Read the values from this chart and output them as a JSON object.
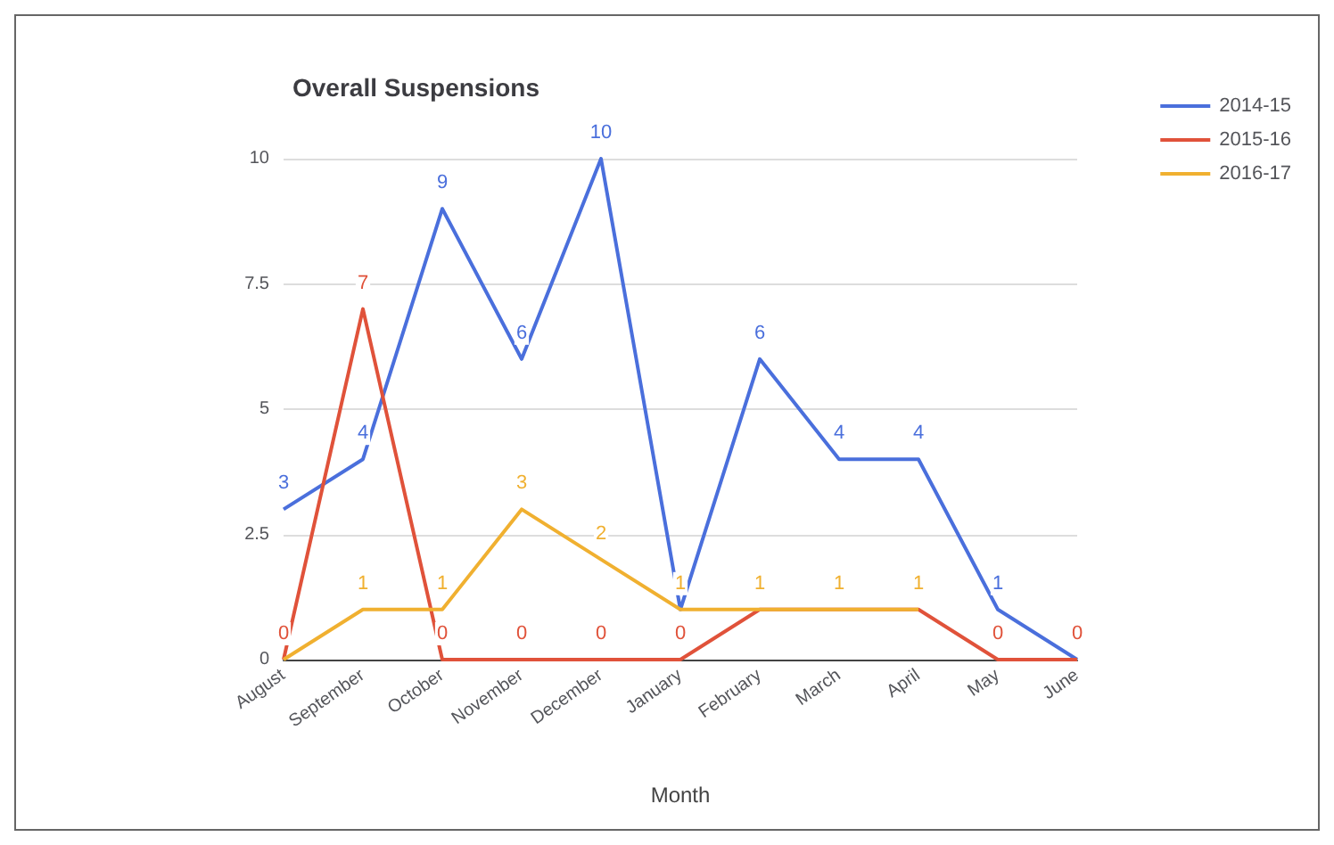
{
  "chart_data": {
    "type": "line",
    "title": "Overall Suspensions",
    "xlabel": "Month",
    "categories": [
      "August",
      "September",
      "October",
      "November",
      "December",
      "January",
      "February",
      "March",
      "April",
      "May",
      "June"
    ],
    "series": [
      {
        "name": "2014-15",
        "color": "#4a6fdc",
        "values": [
          3,
          4,
          9,
          6,
          10,
          1,
          6,
          4,
          4,
          1,
          0
        ],
        "value_labels": [
          "3",
          "4",
          "9",
          "6",
          "10",
          null,
          "6",
          "4",
          "4",
          "1",
          null
        ]
      },
      {
        "name": "2015-16",
        "color": "#e0523a",
        "values": [
          0,
          7,
          0,
          0,
          0,
          0,
          1,
          1,
          1,
          0,
          0
        ],
        "value_labels": [
          "0",
          "7",
          "0",
          "0",
          "0",
          "0",
          null,
          null,
          null,
          "0",
          "0"
        ]
      },
      {
        "name": "2016-17",
        "color": "#f0b030",
        "values": [
          0,
          1,
          1,
          3,
          2,
          1,
          1,
          1,
          1,
          null,
          null
        ],
        "value_labels": [
          null,
          "1",
          "1",
          "3",
          "2",
          "1",
          "1",
          "1",
          "1",
          null,
          null
        ]
      }
    ],
    "ylim": [
      0,
      10
    ],
    "yticks": [
      0,
      2.5,
      5,
      7.5,
      10
    ],
    "grid": "y",
    "legend": "right"
  }
}
